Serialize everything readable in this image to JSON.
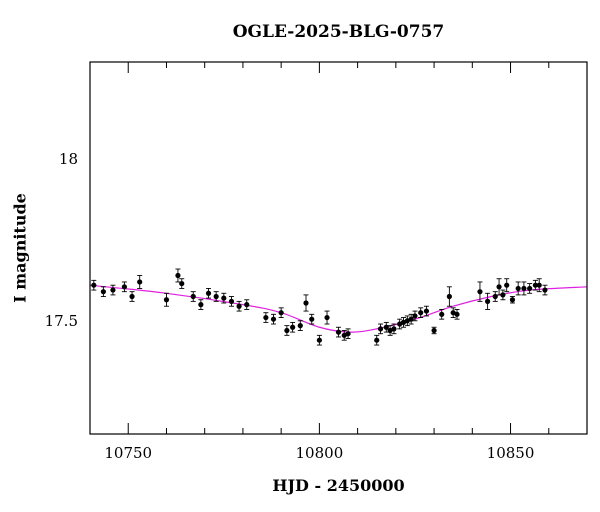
{
  "chart_data": {
    "type": "scatter",
    "title": "OGLE-2025-BLG-0757",
    "xlabel": "HJD - 2450000",
    "ylabel": "I magnitude",
    "xlim": [
      10740,
      10870
    ],
    "ylim": [
      18.3,
      17.15
    ],
    "y_inverted": true,
    "x_ticks": [
      10750,
      10800,
      10850
    ],
    "y_ticks": [
      17.5,
      18
    ],
    "x_tick_labels": [
      "10750",
      "10800",
      "10850"
    ],
    "y_tick_labels": [
      "17.5",
      "18"
    ],
    "grid": false,
    "legend": "none",
    "colors": {
      "points": "#000000",
      "model": "#e020e0"
    },
    "series": [
      {
        "kind": "points_with_errorbars",
        "x": [
          10741,
          10743.5,
          10746,
          10749,
          10751,
          10753,
          10760,
          10763,
          10764,
          10767,
          10769,
          10771,
          10773,
          10775,
          10777,
          10779,
          10781,
          10786,
          10788,
          10790,
          10791.5,
          10793,
          10795,
          10796.5,
          10798,
          10800,
          10802,
          10805,
          10806.5,
          10807.5,
          10815,
          10816,
          10817.5,
          10818.5,
          10819.5,
          10821,
          10822,
          10823,
          10824,
          10825,
          10826.5,
          10828,
          10830,
          10832,
          10834,
          10835,
          10836,
          10842,
          10844,
          10846,
          10847,
          10848,
          10849,
          10850.5,
          10852,
          10853.5,
          10855,
          10856.5,
          10857.5,
          10859
        ],
        "y": [
          17.61,
          17.59,
          17.595,
          17.605,
          17.575,
          17.62,
          17.565,
          17.64,
          17.615,
          17.575,
          17.55,
          17.585,
          17.575,
          17.57,
          17.56,
          17.545,
          17.55,
          17.51,
          17.505,
          17.525,
          17.47,
          17.48,
          17.485,
          17.555,
          17.505,
          17.44,
          17.51,
          17.465,
          17.455,
          17.46,
          17.44,
          17.475,
          17.48,
          17.47,
          17.475,
          17.49,
          17.495,
          17.5,
          17.505,
          17.515,
          17.525,
          17.53,
          17.47,
          17.52,
          17.575,
          17.525,
          17.52,
          17.59,
          17.56,
          17.575,
          17.605,
          17.58,
          17.61,
          17.565,
          17.6,
          17.6,
          17.6,
          17.61,
          17.61,
          17.595
        ],
        "yerr": [
          0.015,
          0.015,
          0.015,
          0.015,
          0.015,
          0.02,
          0.02,
          0.02,
          0.015,
          0.015,
          0.015,
          0.015,
          0.015,
          0.015,
          0.015,
          0.015,
          0.015,
          0.015,
          0.015,
          0.015,
          0.015,
          0.015,
          0.015,
          0.025,
          0.015,
          0.015,
          0.02,
          0.015,
          0.015,
          0.015,
          0.015,
          0.015,
          0.015,
          0.015,
          0.015,
          0.015,
          0.015,
          0.015,
          0.015,
          0.015,
          0.015,
          0.015,
          0.01,
          0.015,
          0.03,
          0.015,
          0.015,
          0.03,
          0.025,
          0.015,
          0.025,
          0.015,
          0.02,
          0.01,
          0.02,
          0.02,
          0.015,
          0.015,
          0.02,
          0.015
        ]
      },
      {
        "kind": "model_curve",
        "x": [
          10740,
          10760,
          10780,
          10790,
          10800,
          10808,
          10815,
          10825,
          10835,
          10845,
          10855,
          10870
        ],
        "y": [
          17.61,
          17.585,
          17.55,
          17.525,
          17.48,
          17.465,
          17.475,
          17.505,
          17.545,
          17.575,
          17.595,
          17.605
        ]
      }
    ]
  }
}
